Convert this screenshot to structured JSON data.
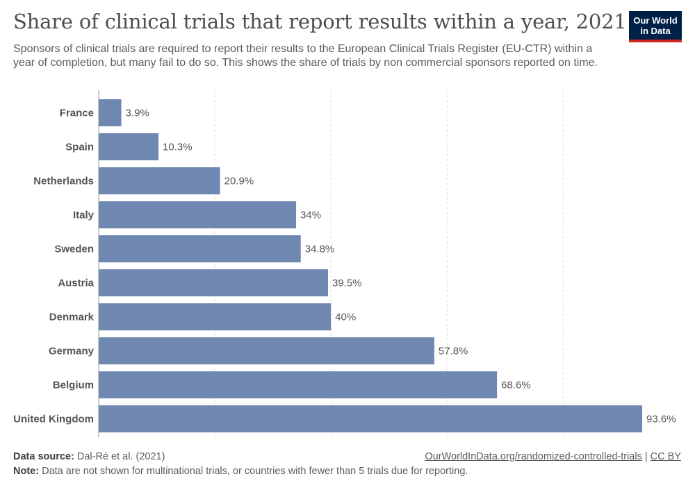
{
  "header": {
    "title": "Share of clinical trials that report results within a year, 2021",
    "subtitle": "Sponsors of clinical trials are required to report their results to the European Clinical Trials Register (EU-CTR) within a year of completion, but many fail to do so. This shows the share of trials by non commercial sponsors reported on time.",
    "logo_line1": "Our World",
    "logo_line2": "in Data"
  },
  "chart_data": {
    "type": "bar",
    "orientation": "horizontal",
    "categories": [
      "France",
      "Spain",
      "Netherlands",
      "Italy",
      "Sweden",
      "Austria",
      "Denmark",
      "Germany",
      "Belgium",
      "United Kingdom"
    ],
    "values": [
      3.9,
      10.3,
      20.9,
      34,
      34.8,
      39.5,
      40,
      57.8,
      68.6,
      93.6
    ],
    "value_labels": [
      "3.9%",
      "10.3%",
      "20.9%",
      "34%",
      "34.8%",
      "39.5%",
      "40%",
      "57.8%",
      "68.6%",
      "93.6%"
    ],
    "xlim": [
      0,
      93.6
    ],
    "grid": "vertical dashed",
    "bar_color": "#6f88b2"
  },
  "footer": {
    "source_label": "Data source:",
    "source_text": "Dal-Ré et al. (2021)",
    "note_label": "Note:",
    "note_text": "Data are not shown for multinational trials, or countries with fewer than 5 trials due for reporting.",
    "link_text": "OurWorldInData.org/randomized-controlled-trials",
    "separator": "|",
    "license_text": "CC BY"
  }
}
